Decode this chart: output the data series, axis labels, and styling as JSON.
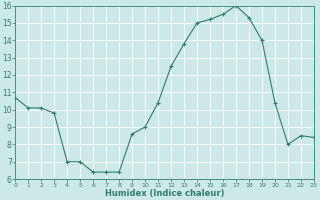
{
  "x": [
    0,
    1,
    2,
    3,
    4,
    5,
    6,
    7,
    8,
    9,
    10,
    11,
    12,
    13,
    14,
    15,
    16,
    17,
    18,
    19,
    20,
    21,
    22,
    23
  ],
  "y": [
    10.7,
    10.1,
    10.1,
    9.8,
    7.0,
    7.0,
    6.4,
    6.4,
    6.4,
    8.6,
    9.0,
    10.4,
    12.5,
    13.8,
    15.0,
    15.2,
    15.5,
    16.0,
    15.3,
    14.0,
    10.4,
    8.0,
    8.5,
    8.4
  ],
  "xlabel": "Humidex (Indice chaleur)",
  "ylim": [
    6,
    16
  ],
  "xlim": [
    0,
    23
  ],
  "yticks": [
    6,
    7,
    8,
    9,
    10,
    11,
    12,
    13,
    14,
    15,
    16
  ],
  "xticks": [
    0,
    1,
    2,
    3,
    4,
    5,
    6,
    7,
    8,
    9,
    10,
    11,
    12,
    13,
    14,
    15,
    16,
    17,
    18,
    19,
    20,
    21,
    22,
    23
  ],
  "line_color": "#2e7d6e",
  "marker": "+",
  "bg_color": "#cce8e8",
  "grid_color": "#ffffff"
}
